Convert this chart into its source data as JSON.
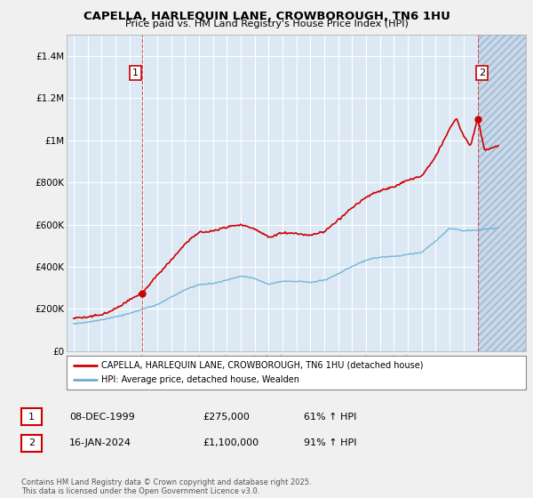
{
  "title_line1": "CAPELLA, HARLEQUIN LANE, CROWBOROUGH, TN6 1HU",
  "title_line2": "Price paid vs. HM Land Registry's House Price Index (HPI)",
  "ylim": [
    0,
    1500000
  ],
  "xlim_start": 1994.5,
  "xlim_end": 2027.5,
  "bg_color": "#f0f0f0",
  "plot_bg_color": "#dce9f5",
  "hatch_color": "#c8d8ea",
  "grid_color": "#ffffff",
  "hpi_color": "#6aaed6",
  "price_color": "#cc0000",
  "sale1_x": 1999.94,
  "sale1_y": 275000,
  "sale2_x": 2024.04,
  "sale2_y": 1100000,
  "legend_entries": [
    "CAPELLA, HARLEQUIN LANE, CROWBOROUGH, TN6 1HU (detached house)",
    "HPI: Average price, detached house, Wealden"
  ],
  "table_rows": [
    {
      "num": "1",
      "date": "08-DEC-1999",
      "price": "£275,000",
      "hpi": "61% ↑ HPI"
    },
    {
      "num": "2",
      "date": "16-JAN-2024",
      "price": "£1,100,000",
      "hpi": "91% ↑ HPI"
    }
  ],
  "footer": "Contains HM Land Registry data © Crown copyright and database right 2025.\nThis data is licensed under the Open Government Licence v3.0.",
  "yticks": [
    0,
    200000,
    400000,
    600000,
    800000,
    1000000,
    1200000,
    1400000
  ],
  "ytick_labels": [
    "£0",
    "£200K",
    "£400K",
    "£600K",
    "£800K",
    "£1M",
    "£1.2M",
    "£1.4M"
  ],
  "xtick_years": [
    1995,
    1996,
    1997,
    1998,
    1999,
    2000,
    2001,
    2002,
    2003,
    2004,
    2005,
    2006,
    2007,
    2008,
    2009,
    2010,
    2011,
    2012,
    2013,
    2014,
    2015,
    2016,
    2017,
    2018,
    2019,
    2020,
    2021,
    2022,
    2023,
    2024,
    2025,
    2026,
    2027
  ]
}
